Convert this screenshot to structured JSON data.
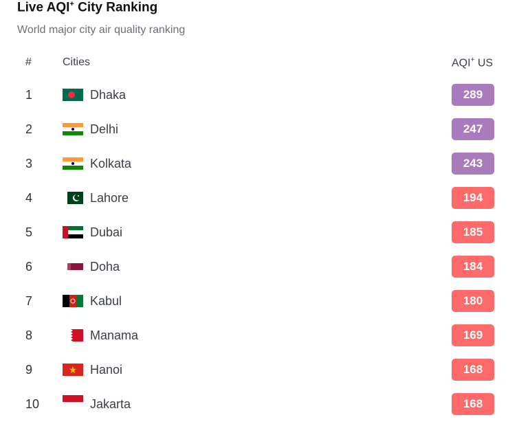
{
  "header": {
    "title": "Live AQI",
    "title_sup": "+",
    "title_rest": " City Ranking",
    "subtitle": "World major city air quality ranking"
  },
  "columns": {
    "rank": "#",
    "city": "Cities",
    "aqi": "AQI",
    "aqi_sup": "+",
    "aqi_rest": " US"
  },
  "colors": {
    "very_unhealthy": "#a97abc",
    "unhealthy": "#fe6a69"
  },
  "rows": [
    {
      "rank": "1",
      "city": "Dhaka",
      "flag": "bangladesh-flag",
      "aqi": "289",
      "level": "very_unhealthy"
    },
    {
      "rank": "2",
      "city": "Delhi",
      "flag": "india-flag",
      "aqi": "247",
      "level": "very_unhealthy"
    },
    {
      "rank": "3",
      "city": "Kolkata",
      "flag": "india-flag",
      "aqi": "243",
      "level": "very_unhealthy"
    },
    {
      "rank": "4",
      "city": "Lahore",
      "flag": "pakistan-flag",
      "aqi": "194",
      "level": "unhealthy"
    },
    {
      "rank": "5",
      "city": "Dubai",
      "flag": "uae-flag",
      "aqi": "185",
      "level": "unhealthy"
    },
    {
      "rank": "6",
      "city": "Doha",
      "flag": "qatar-flag",
      "aqi": "184",
      "level": "unhealthy"
    },
    {
      "rank": "7",
      "city": "Kabul",
      "flag": "afghanistan-flag",
      "aqi": "180",
      "level": "unhealthy"
    },
    {
      "rank": "8",
      "city": "Manama",
      "flag": "bahrain-flag",
      "aqi": "169",
      "level": "unhealthy"
    },
    {
      "rank": "9",
      "city": "Hanoi",
      "flag": "vietnam-flag",
      "aqi": "168",
      "level": "unhealthy"
    },
    {
      "rank": "10",
      "city": "Jakarta",
      "flag": "indonesia-flag",
      "aqi": "168",
      "level": "unhealthy"
    }
  ]
}
